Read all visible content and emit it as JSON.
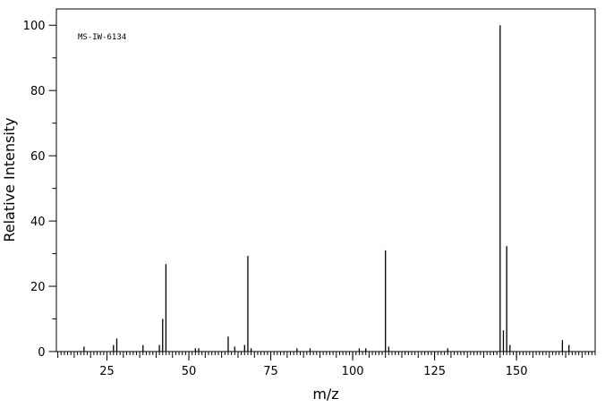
{
  "chart_data": {
    "type": "stem",
    "annotation": "MS-IW-6134",
    "x_label": "m/z",
    "y_label": "Relative Intensity",
    "color": "#000000",
    "x": [
      18,
      27,
      28,
      36,
      41,
      42,
      43,
      52,
      53,
      62,
      64,
      67,
      68,
      69,
      83,
      87,
      102,
      104,
      110,
      111,
      129,
      145,
      146,
      147,
      148,
      164,
      166
    ],
    "values": [
      1.5,
      2,
      4,
      2,
      2,
      10,
      26.8,
      1,
      1,
      4.6,
      1.5,
      2,
      29.3,
      1,
      1,
      1,
      1,
      1,
      31,
      1.5,
      1,
      100,
      6.5,
      32.3,
      2,
      3.5,
      2
    ],
    "xlim": [
      9.7,
      174
    ],
    "ylim": [
      0,
      105
    ],
    "xticks": [
      25,
      50,
      75,
      100,
      125,
      150
    ],
    "yticks": [
      0,
      20,
      40,
      60,
      80,
      100
    ]
  }
}
